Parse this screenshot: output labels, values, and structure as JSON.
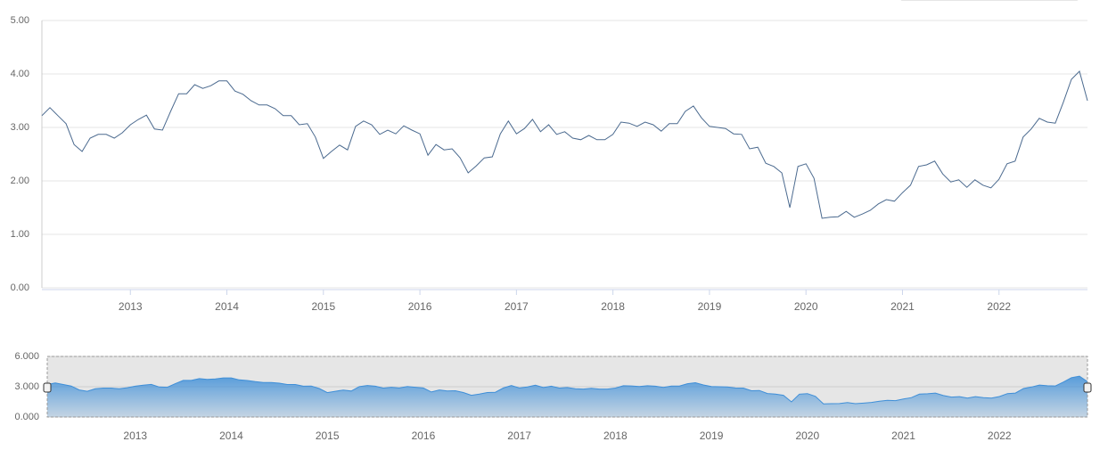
{
  "chart_data": {
    "type": "line",
    "categories": [
      null,
      null,
      null,
      null,
      null,
      null,
      null,
      null,
      null,
      null,
      null,
      "2013",
      null,
      null,
      null,
      null,
      null,
      null,
      null,
      null,
      null,
      null,
      null,
      "2014",
      null,
      null,
      null,
      null,
      null,
      null,
      null,
      null,
      null,
      null,
      null,
      "2015",
      null,
      null,
      null,
      null,
      null,
      null,
      null,
      null,
      null,
      null,
      null,
      "2016",
      null,
      null,
      null,
      null,
      null,
      null,
      null,
      null,
      null,
      null,
      null,
      "2017",
      null,
      null,
      null,
      null,
      null,
      null,
      null,
      null,
      null,
      null,
      null,
      "2018",
      null,
      null,
      null,
      null,
      null,
      null,
      null,
      null,
      null,
      null,
      null,
      "2019",
      null,
      null,
      null,
      null,
      null,
      null,
      null,
      null,
      null,
      null,
      null,
      "2020",
      null,
      null,
      null,
      null,
      null,
      null,
      null,
      null,
      null,
      null,
      null,
      "2021",
      null,
      null,
      null,
      null,
      null,
      null,
      null,
      null,
      null,
      null,
      null,
      "2022",
      null,
      null,
      null,
      null,
      null,
      null,
      null,
      null,
      null,
      null,
      null
    ],
    "series": [
      {
        "color": "#4b6a8f",
        "values": [
          3.22,
          3.37,
          3.22,
          3.07,
          2.68,
          2.55,
          2.8,
          2.87,
          2.87,
          2.8,
          2.9,
          3.05,
          3.15,
          3.23,
          2.97,
          2.95,
          3.3,
          3.63,
          3.63,
          3.8,
          3.73,
          3.78,
          3.87,
          3.87,
          3.68,
          3.62,
          3.5,
          3.42,
          3.42,
          3.35,
          3.22,
          3.22,
          3.05,
          3.07,
          2.82,
          2.42,
          2.55,
          2.67,
          2.58,
          3.02,
          3.12,
          3.05,
          2.87,
          2.95,
          2.88,
          3.03,
          2.95,
          2.88,
          2.48,
          2.68,
          2.58,
          2.6,
          2.43,
          2.15,
          2.28,
          2.43,
          2.45,
          2.88,
          3.12,
          2.88,
          2.98,
          3.15,
          2.92,
          3.05,
          2.87,
          2.92,
          2.8,
          2.77,
          2.85,
          2.77,
          2.77,
          2.87,
          3.1,
          3.08,
          3.02,
          3.1,
          3.05,
          2.93,
          3.07,
          3.07,
          3.3,
          3.4,
          3.18,
          3.02,
          3.0,
          2.98,
          2.88,
          2.87,
          2.6,
          2.63,
          2.33,
          2.27,
          2.15,
          1.5,
          2.27,
          2.32,
          2.05,
          1.3,
          1.32,
          1.33,
          1.43,
          1.32,
          1.38,
          1.45,
          1.57,
          1.65,
          1.62,
          1.78,
          1.92,
          2.27,
          2.3,
          2.37,
          2.13,
          1.98,
          2.02,
          1.88,
          2.02,
          1.92,
          1.87,
          2.03,
          2.32,
          2.37,
          2.82,
          2.97,
          3.17,
          3.1,
          3.08,
          3.47,
          3.9,
          4.05,
          3.5
        ]
      }
    ],
    "ylim": [
      0,
      5
    ],
    "yticks": [
      {
        "value": 0,
        "label": "0.00"
      },
      {
        "value": 1,
        "label": "1.00"
      },
      {
        "value": 2,
        "label": "2.00"
      },
      {
        "value": 3,
        "label": "3.00"
      },
      {
        "value": 4,
        "label": "4.00"
      },
      {
        "value": 5,
        "label": "5.00"
      }
    ],
    "grid": true,
    "navigator": {
      "ylim": [
        0,
        6
      ],
      "yticks": [
        {
          "value": 0,
          "label": "0.000"
        },
        {
          "value": 3,
          "label": "3.000"
        },
        {
          "value": 6,
          "label": "6.000"
        }
      ],
      "color": "#3f8fd8"
    }
  }
}
